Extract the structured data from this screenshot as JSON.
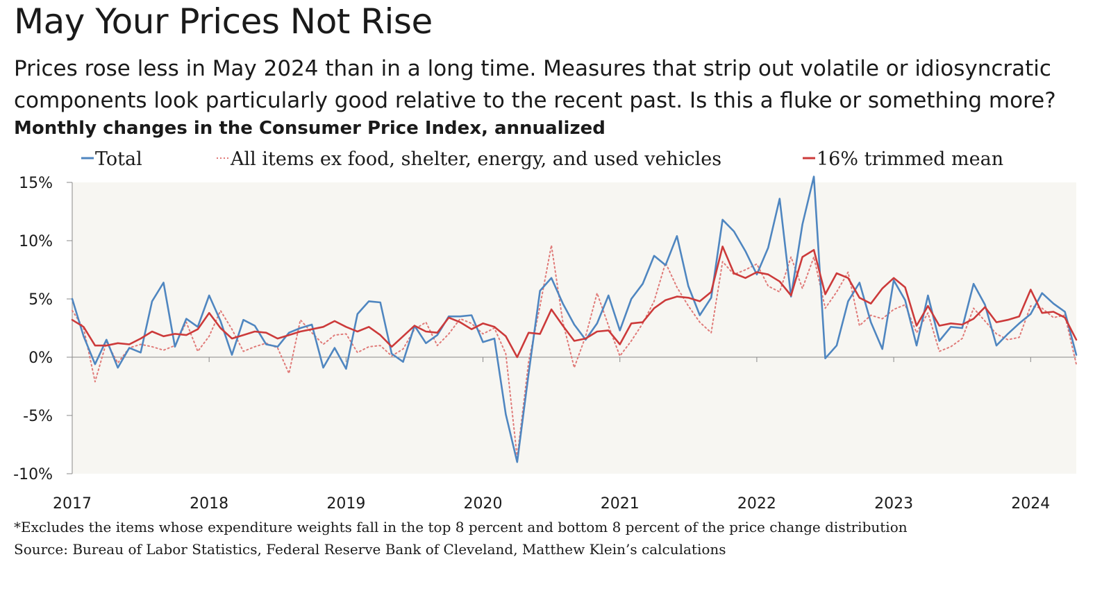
{
  "title": "May Your Prices Not Rise",
  "subtitle": "Prices rose less in May 2024 than in a long time. Measures that strip out volatile or idiosyncratic components look particularly good relative to the recent past. Is this a fluke or something more?",
  "chart_heading": "Monthly changes in the Consumer Price Index, annualized",
  "footnote": "*Excludes the items whose expenditure weights fall in the top 8 percent and bottom 8 percent of the price change distribution",
  "source": "Source: Bureau of Labor Statistics, Federal Reserve Bank of Cleveland, Matthew Klein’s calculations",
  "chart_data": {
    "type": "line",
    "title": "Monthly changes in the Consumer Price Index, annualized",
    "x_start": "2017-01",
    "x_end": "2024-05",
    "x_tick_labels": [
      "2017",
      "2018",
      "2019",
      "2020",
      "2021",
      "2022",
      "2023",
      "2024"
    ],
    "ylim": [
      -10,
      15
    ],
    "y_tick_values": [
      -10,
      -5,
      0,
      5,
      10,
      15
    ],
    "y_tick_labels": [
      "-10%",
      "-5%",
      "0%",
      "5%",
      "10%",
      "15%"
    ],
    "legend_position": "top",
    "grid": false,
    "background_color": "#f7f6f2",
    "series": [
      {
        "name": "Total",
        "color": "#4f86c0",
        "style": "solid",
        "values": [
          5.0,
          1.8,
          -0.6,
          1.5,
          -0.9,
          0.8,
          0.4,
          4.8,
          6.4,
          0.9,
          3.3,
          2.6,
          5.3,
          3.1,
          0.2,
          3.2,
          2.7,
          1.1,
          0.9,
          2.1,
          2.5,
          2.8,
          -0.9,
          0.8,
          -1.0,
          3.7,
          4.8,
          4.7,
          0.3,
          -0.4,
          2.7,
          1.2,
          1.9,
          3.5,
          3.5,
          3.6,
          1.3,
          1.6,
          -4.9,
          -9.0,
          -1.4,
          5.7,
          6.8,
          4.6,
          2.8,
          1.5,
          2.9,
          5.3,
          2.3,
          5.0,
          6.3,
          8.7,
          7.9,
          10.4,
          6.1,
          3.6,
          5.1,
          11.8,
          10.8,
          9.1,
          7.1,
          9.4,
          13.6,
          5.2,
          11.4,
          15.5,
          -0.1,
          1.0,
          4.8,
          6.4,
          3.0,
          0.7,
          6.6,
          4.9,
          1.0,
          5.3,
          1.4,
          2.6,
          2.5,
          6.3,
          4.5,
          1.0,
          2.0,
          2.9,
          3.7,
          5.5,
          4.6,
          3.9,
          0.2
        ]
      },
      {
        "name": "All items ex food, shelter, energy, and used vehicles",
        "color": "#e07a78",
        "style": "dotted",
        "values": [
          4.0,
          2.5,
          -2.1,
          1.3,
          -0.5,
          0.8,
          1.1,
          0.9,
          0.6,
          1.0,
          3.0,
          0.5,
          1.8,
          4.0,
          2.4,
          0.5,
          0.9,
          1.2,
          0.8,
          -1.4,
          3.2,
          2.1,
          1.1,
          1.9,
          2.0,
          0.4,
          0.9,
          1.0,
          0.1,
          0.7,
          2.4,
          3.0,
          1.0,
          2.0,
          3.3,
          2.9,
          2.0,
          2.5,
          0.3,
          -8.6,
          -0.4,
          4.4,
          9.6,
          3.0,
          -0.9,
          1.8,
          5.5,
          2.7,
          0.1,
          1.4,
          2.9,
          4.8,
          8.1,
          6.0,
          4.4,
          3.0,
          2.1,
          8.2,
          7.1,
          7.5,
          8.0,
          6.1,
          5.6,
          8.6,
          5.9,
          8.6,
          4.2,
          5.6,
          7.3,
          2.7,
          3.6,
          3.3,
          4.1,
          4.5,
          2.1,
          3.8,
          0.5,
          0.9,
          1.6,
          4.2,
          3.1,
          2.0,
          1.5,
          1.7,
          4.4,
          4.2,
          3.4,
          3.6,
          -0.6
        ]
      },
      {
        "name": "16% trimmed mean",
        "color": "#cc3a3a",
        "style": "solid",
        "values": [
          3.2,
          2.6,
          1.0,
          1.0,
          1.2,
          1.1,
          1.6,
          2.2,
          1.8,
          2.0,
          1.9,
          2.4,
          3.8,
          2.5,
          1.6,
          1.9,
          2.2,
          2.1,
          1.6,
          1.9,
          2.2,
          2.4,
          2.6,
          3.1,
          2.6,
          2.2,
          2.6,
          1.9,
          0.9,
          1.8,
          2.7,
          2.2,
          2.1,
          3.4,
          3.0,
          2.4,
          2.9,
          2.6,
          1.8,
          0.0,
          2.1,
          2.0,
          4.1,
          2.7,
          1.4,
          1.6,
          2.2,
          2.3,
          1.1,
          2.9,
          3.0,
          4.2,
          4.9,
          5.2,
          5.1,
          4.8,
          5.6,
          9.5,
          7.2,
          6.8,
          7.3,
          7.1,
          6.5,
          5.3,
          8.6,
          9.2,
          5.4,
          7.2,
          6.8,
          5.1,
          4.6,
          5.9,
          6.8,
          6.0,
          2.7,
          4.4,
          2.7,
          2.9,
          2.8,
          3.3,
          4.3,
          3.0,
          3.2,
          3.5,
          5.8,
          3.8,
          3.9,
          3.4,
          1.5
        ]
      }
    ]
  }
}
